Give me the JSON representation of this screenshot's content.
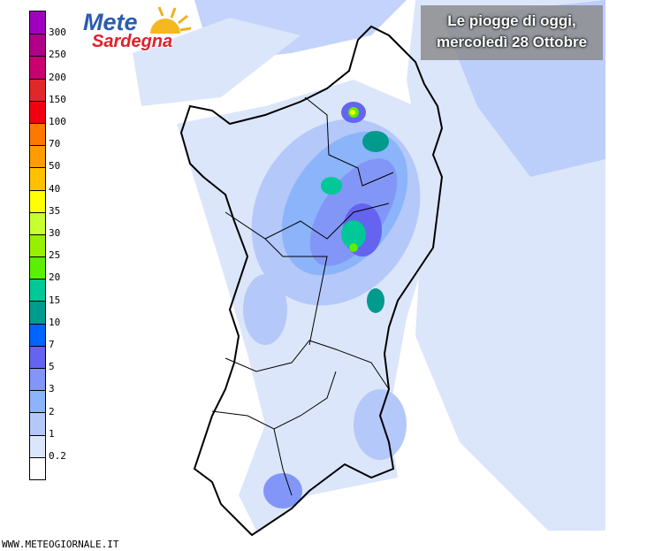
{
  "title": {
    "line1": "Le piogge di oggi,",
    "line2": "mercoledì 28 Ottobre"
  },
  "logo": {
    "text_top": "Mete",
    "text_bottom": "Sardegna"
  },
  "footer": "WWW.METEOGIORNALE.IT",
  "legend": {
    "labels": [
      "300",
      "250",
      "200",
      "150",
      "100",
      "70",
      "50",
      "40",
      "35",
      "30",
      "25",
      "20",
      "15",
      "10",
      "7",
      "5",
      "3",
      "2",
      "1",
      "0.2"
    ],
    "colors": [
      "#a000c0",
      "#b0008a",
      "#c80070",
      "#e02828",
      "#f00010",
      "#ff7800",
      "#ff9c00",
      "#ffc000",
      "#ffff00",
      "#c8ff30",
      "#96f000",
      "#5af000",
      "#00c896",
      "#009b8c",
      "#0064ff",
      "#6464f0",
      "#8296f8",
      "#8cb4fa",
      "#b4c8fa",
      "#dce6fa",
      "#ffffff"
    ]
  }
}
